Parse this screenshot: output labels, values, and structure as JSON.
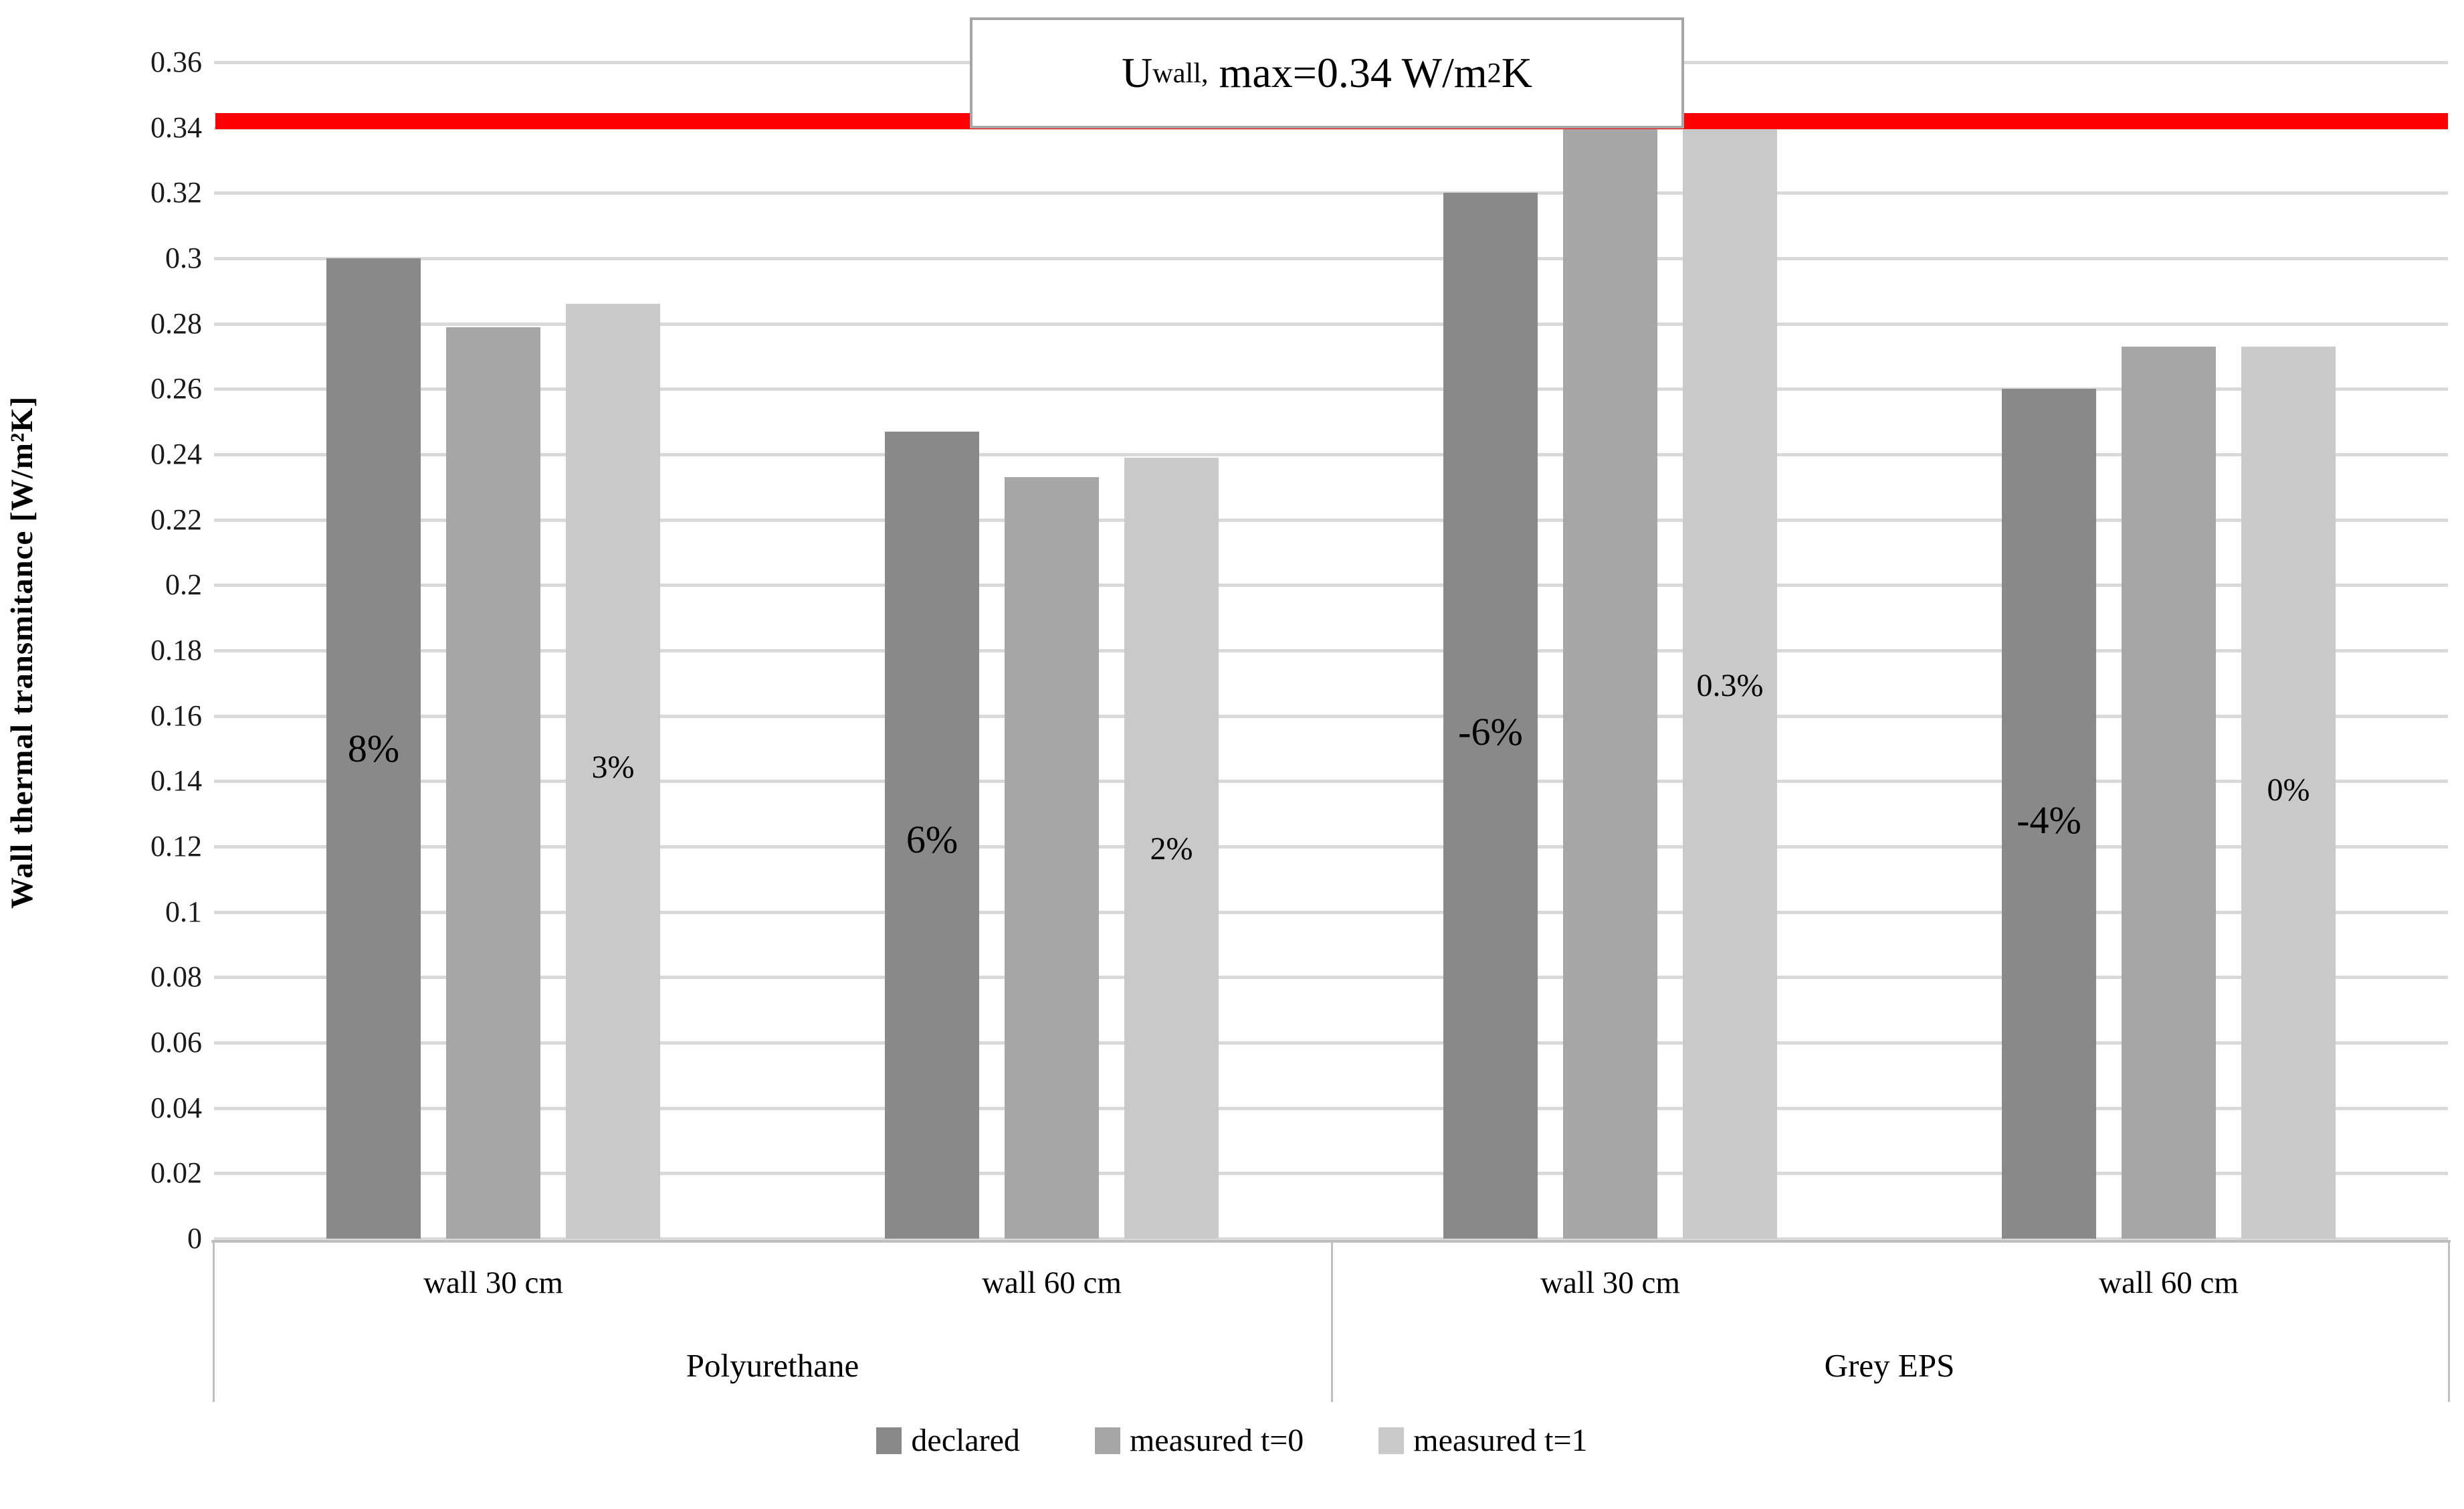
{
  "chart_data": {
    "type": "bar",
    "title": "Uwall, max=0.34 W/m2K reference annotation",
    "title_annotation": {
      "prefix": "U",
      "subscript": "wall,",
      "main": " max=0.34 W/m",
      "sup": "2",
      "suffix": "K"
    },
    "ylabel": "Wall thermal transmitance [W/m²K]",
    "xlabel": "",
    "ylim": [
      0,
      0.36
    ],
    "ytick_step": 0.02,
    "ytick_labels": [
      "0",
      "0.02",
      "0.04",
      "0.06",
      "0.08",
      "0.1",
      "0.12",
      "0.14",
      "0.16",
      "0.18",
      "0.2",
      "0.22",
      "0.24",
      "0.26",
      "0.28",
      "0.3",
      "0.32",
      "0.34",
      "0.36"
    ],
    "grid": true,
    "gridline_color": "#d9d9d9",
    "reference_line": {
      "value": 0.34,
      "drawn_at": 0.342,
      "color": "#fe0000"
    },
    "categories": [
      "wall 30 cm",
      "wall 60 cm",
      "wall 30 cm",
      "wall 60 cm"
    ],
    "category_groups": [
      "Polyurethane",
      "Grey EPS"
    ],
    "series": [
      {
        "name": "declared",
        "color": "#898989",
        "values": [
          0.3,
          0.247,
          0.32,
          0.26
        ]
      },
      {
        "name": "measured t=0",
        "color": "#a6a6a6",
        "values": [
          0.279,
          0.233,
          0.341,
          0.273
        ]
      },
      {
        "name": "measured t=1",
        "color": "#c9c9c9",
        "values": [
          0.286,
          0.239,
          0.341,
          0.273
        ]
      }
    ],
    "bar_annotations": [
      {
        "group": 0,
        "series": 0,
        "text": "8%",
        "at_value": 0.15,
        "size": "large"
      },
      {
        "group": 0,
        "series": 2,
        "text": "3%",
        "at_value": 0.143,
        "size": "small"
      },
      {
        "group": 1,
        "series": 0,
        "text": "6%",
        "at_value": 0.122,
        "size": "large"
      },
      {
        "group": 1,
        "series": 2,
        "text": "2%",
        "at_value": 0.118,
        "size": "small"
      },
      {
        "group": 2,
        "series": 0,
        "text": "-6%",
        "at_value": 0.155,
        "size": "large"
      },
      {
        "group": 2,
        "series": 2,
        "text": "0.3%",
        "at_value": 0.168,
        "size": "small"
      },
      {
        "group": 3,
        "series": 0,
        "text": "-4%",
        "at_value": 0.128,
        "size": "large"
      },
      {
        "group": 3,
        "series": 2,
        "text": "0%",
        "at_value": 0.136,
        "size": "small"
      }
    ],
    "legend": {
      "position": "bottom",
      "items": [
        "declared",
        "measured t=0",
        "measured t=1"
      ]
    }
  }
}
